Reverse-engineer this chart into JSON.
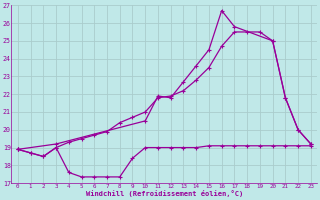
{
  "x_min": 0,
  "x_max": 23,
  "y_min": 17,
  "y_max": 27,
  "xlabel": "Windchill (Refroidissement éolien,°C)",
  "background_color": "#c0e8e8",
  "grid_color": "#b0d8d8",
  "line_color": "#990099",
  "line1_x": [
    0,
    1,
    2,
    3,
    4,
    5,
    6,
    7,
    8,
    9,
    10,
    11,
    12,
    13,
    14,
    15,
    16,
    17,
    18,
    19,
    20,
    21,
    22,
    23
  ],
  "line1_y": [
    18.9,
    18.7,
    18.5,
    19.0,
    17.6,
    17.35,
    17.35,
    17.35,
    17.35,
    18.4,
    19.0,
    19.0,
    19.0,
    19.0,
    19.0,
    19.1,
    19.1,
    19.1,
    19.1,
    19.1,
    19.1,
    19.1,
    19.1,
    19.1
  ],
  "line2_x": [
    0,
    1,
    2,
    3,
    4,
    5,
    6,
    7,
    8,
    9,
    10,
    11,
    12,
    13,
    14,
    15,
    16,
    17,
    18,
    19,
    20,
    21,
    22,
    23
  ],
  "line2_y": [
    18.9,
    18.7,
    18.5,
    19.0,
    19.3,
    19.5,
    19.7,
    19.9,
    20.4,
    20.7,
    21.0,
    21.8,
    21.9,
    22.2,
    22.8,
    23.5,
    24.7,
    25.5,
    25.5,
    25.5,
    25.0,
    21.8,
    20.0,
    19.2
  ],
  "line3_x": [
    0,
    3,
    10,
    11,
    12,
    13,
    14,
    15,
    16,
    17,
    20,
    21,
    22,
    23
  ],
  "line3_y": [
    18.9,
    19.2,
    20.5,
    21.9,
    21.8,
    22.7,
    23.6,
    24.5,
    26.7,
    25.8,
    25.0,
    21.8,
    20.0,
    19.2
  ]
}
